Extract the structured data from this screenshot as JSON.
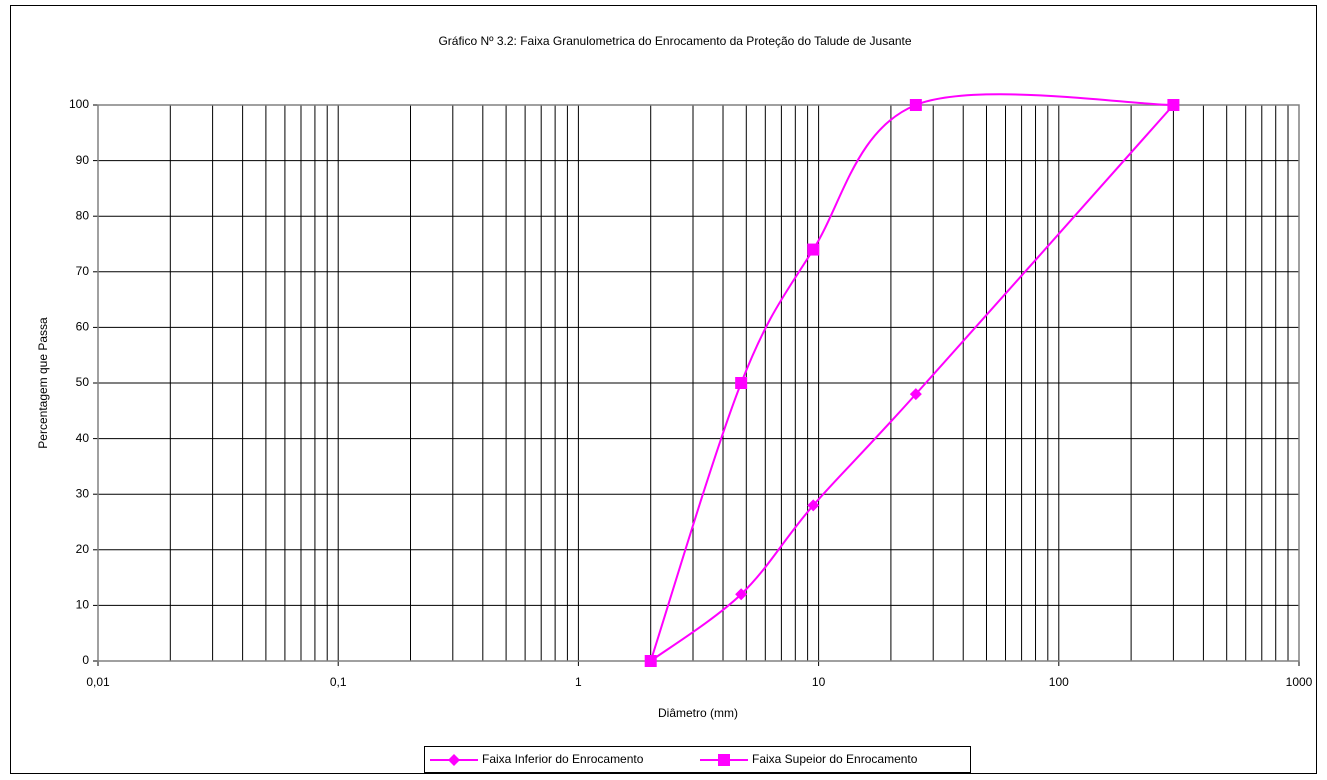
{
  "chart_data": {
    "type": "line",
    "title": "Gráfico Nº 3.2: Faixa Granulometrica do Enrocamento da Proteção do Talude de Jusante",
    "x_label": "Diâmetro (mm)",
    "y_label": "Percentagem que Passa",
    "x": [
      2,
      4.76,
      9.5,
      25.4,
      300
    ],
    "series": [
      {
        "name": "Faixa Inferior do Enrocamento",
        "color": "#ff00ff",
        "marker": "diamond",
        "values": [
          0,
          12,
          28,
          48,
          100
        ]
      },
      {
        "name": "Faixa Supeior do Enrocamento",
        "color": "#ff00ff",
        "marker": "square",
        "values": [
          0,
          50,
          74,
          100,
          100
        ]
      }
    ],
    "xscale": "log",
    "xlim": [
      0.01,
      1000
    ],
    "xticks": [
      {
        "value": 0.01,
        "label": "0,01"
      },
      {
        "value": 0.1,
        "label": "0,1"
      },
      1,
      10,
      100,
      1000
    ],
    "xminorticks": [
      0.02,
      0.03,
      0.04,
      0.05,
      0.06,
      0.07,
      0.08,
      0.09,
      0.2,
      0.3,
      0.4,
      0.5,
      0.6,
      0.7,
      0.8,
      0.9,
      2,
      3,
      4,
      5,
      6,
      7,
      8,
      9,
      20,
      30,
      40,
      50,
      60,
      70,
      80,
      90,
      200,
      300,
      400,
      500,
      600,
      700,
      800,
      900
    ],
    "ylim": [
      0,
      100
    ],
    "yticks": [
      0,
      10,
      20,
      30,
      40,
      50,
      60,
      70,
      80,
      90,
      100
    ],
    "grid": true,
    "legend": "bottom"
  }
}
